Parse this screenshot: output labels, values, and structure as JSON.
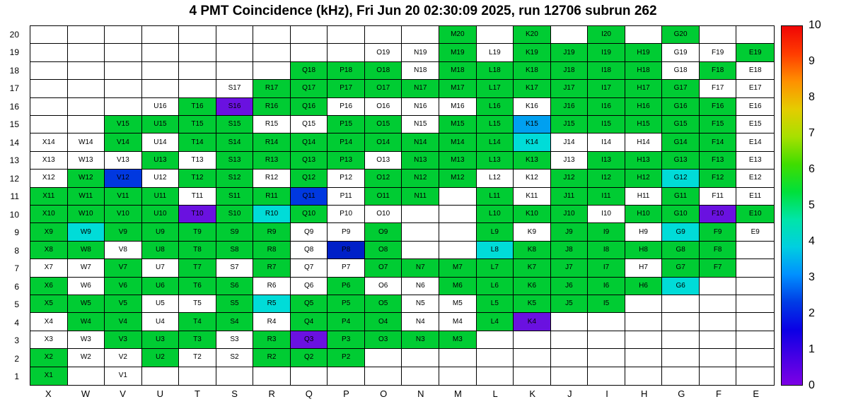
{
  "chart_data": {
    "type": "heatmap",
    "title": "4 PMT Coincidence (kHz), Fri Jun 20 02:30:09 2025, run 12706 subrun 262",
    "unit": "kHz",
    "columns": [
      "X",
      "W",
      "V",
      "U",
      "T",
      "S",
      "R",
      "Q",
      "P",
      "O",
      "N",
      "M",
      "L",
      "K",
      "J",
      "I",
      "H",
      "G",
      "F",
      "E"
    ],
    "rows": [
      20,
      19,
      18,
      17,
      16,
      15,
      14,
      13,
      12,
      11,
      10,
      9,
      8,
      7,
      6,
      5,
      4,
      3,
      2,
      1
    ],
    "grid": [
      "...........g.g.g.g..",
      ".........wwgwggggwwg",
      ".......gggwggggggwgw",
      ".....wggggggggggggww",
      "...wgpggwwwwgwgggggw",
      "..ggggwwggwggsgggggw",
      "wwgwgggggggggcwwwggw",
      "wwwgwggggwggggwggggw",
      "wgbwggwgwgggwwgggcgw",
      "ggggwggbwgg.gwggwgww",
      "ggggpgcgww..gggwggpg",
      "gcgggggwwg..gwggwcgw",
      "ggwggggwBg..cgggggg.",
      "wwgwgwgwwgggggggwgg.",
      "gwggggwwgwwggggggc..",
      "gggwwgcgggwwgggg....",
      "wggwggwgggwwgp......",
      "wwgggwgpgggg........",
      "gwwgwwggg...........",
      "g.w................."
    ],
    "color_codes": {
      ".": {
        "name": "empty-no-channel",
        "hex": "#ffffff",
        "value_estimate": null
      },
      "w": {
        "name": "white-zero",
        "hex": "#ffffff",
        "value_estimate": 0.0
      },
      "p": {
        "name": "violet",
        "hex": "#6a11e0",
        "value_estimate": 0.4
      },
      "B": {
        "name": "dark-blue",
        "hex": "#0020c8",
        "value_estimate": 1.0
      },
      "b": {
        "name": "blue",
        "hex": "#0038e0",
        "value_estimate": 1.6
      },
      "s": {
        "name": "azure",
        "hex": "#00a0f0",
        "value_estimate": 2.8
      },
      "c": {
        "name": "cyan",
        "hex": "#00dcd8",
        "value_estimate": 3.9
      },
      "g": {
        "name": "green",
        "hex": "#00cc33",
        "value_estimate": 5.0
      }
    },
    "colorbar": {
      "min": 0,
      "max": 10,
      "tick_labels": [
        "10",
        "9",
        "8",
        "7",
        "6",
        "5",
        "4",
        "3",
        "2",
        "1",
        "0"
      ],
      "gradient_stops": [
        "#7d00e5",
        "#4600e5",
        "#0b00e5",
        "#003ce5",
        "#0090ff",
        "#00cfe0",
        "#00e5a8",
        "#00e03a",
        "#40dd00",
        "#a8e000",
        "#e5cc00",
        "#ff9000",
        "#ff3c00",
        "#f00505"
      ]
    }
  }
}
